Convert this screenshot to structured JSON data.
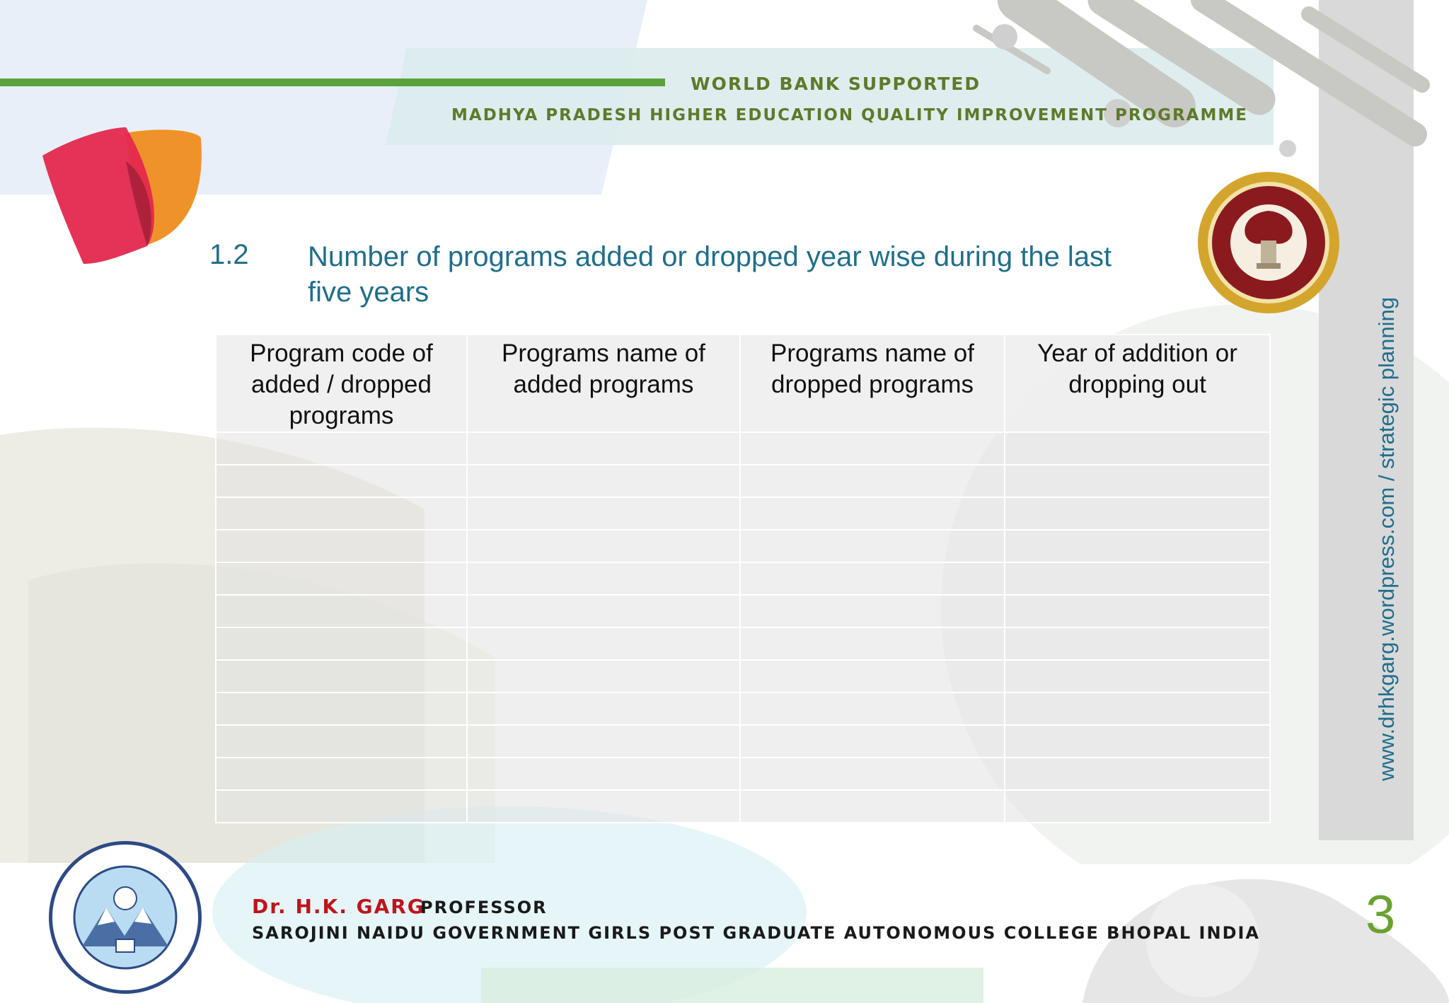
{
  "header": {
    "line1": "WORLD BANK SUPPORTED",
    "line2": "MADHYA PRADESH HIGHER EDUCATION QUALITY IMPROVEMENT PROGRAMME"
  },
  "title": {
    "number": "1.2",
    "text": "Number of programs added or dropped year wise during the last five years"
  },
  "table": {
    "headers": [
      "Program code of added / dropped programs",
      "Programs name of added programs",
      "Programs name of dropped programs",
      "Year of addition or dropping out"
    ],
    "row_count": 12
  },
  "sidebar": {
    "url": "www.drhkgarg.wordpress.com / strategic planning"
  },
  "footer": {
    "name": "Dr. H.K. GARG",
    "role": "PROFESSOR",
    "college": "SAROJINI NAIDU GOVERNMENT GIRLS POST GRADUATE AUTONOMOUS COLLEGE BHOPAL INDIA"
  },
  "page_number": "3",
  "colors": {
    "title": "#1f6e8c",
    "header_text": "#5e7a2a",
    "footer_name": "#c0141b",
    "page_number": "#6aa232",
    "accent_line": "#5aa33c"
  },
  "icons": {
    "top_left_logo": "petal-logo-icon",
    "state_emblem": "mp-government-seal-icon",
    "college_emblem": "college-seal-icon"
  }
}
